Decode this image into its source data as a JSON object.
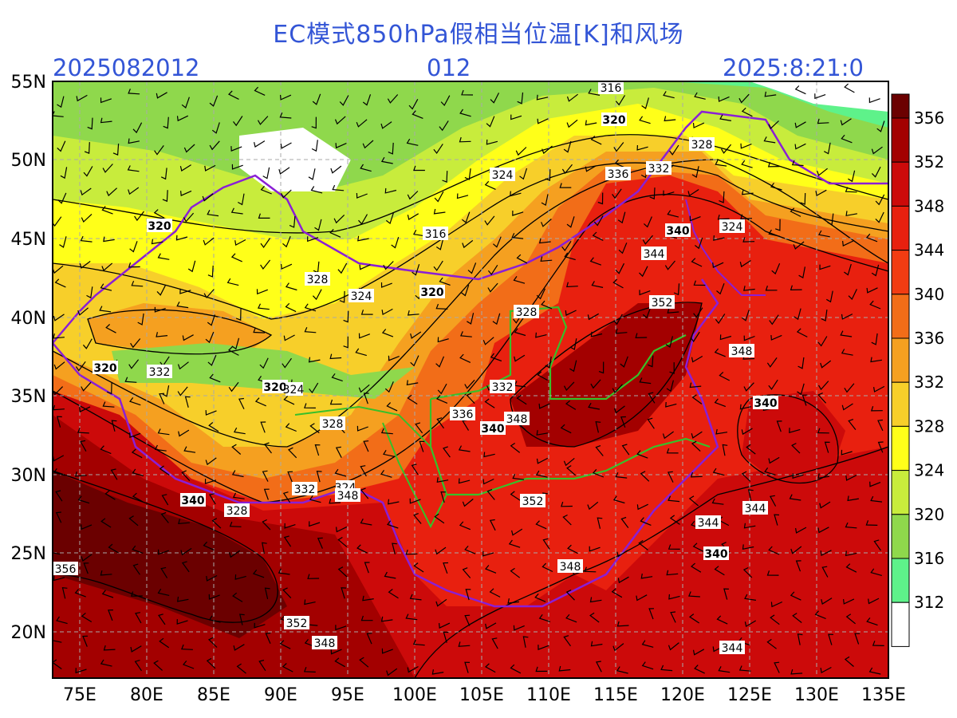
{
  "header": {
    "title": "EC模式850hPa假相当位温[K]和风场",
    "init_time": "2025082012",
    "forecast_hour": "012",
    "valid_time": "2025:8:21:0"
  },
  "axes": {
    "lat_labels": [
      "55N",
      "50N",
      "45N",
      "40N",
      "35N",
      "30N",
      "25N",
      "20N"
    ],
    "lon_labels": [
      "75E",
      "80E",
      "85E",
      "90E",
      "95E",
      "100E",
      "105E",
      "110E",
      "115E",
      "120E",
      "125E",
      "130E",
      "135E"
    ]
  },
  "colorbar": {
    "levels": [
      "356",
      "352",
      "348",
      "344",
      "340",
      "336",
      "332",
      "328",
      "324",
      "320",
      "316",
      "312"
    ],
    "colors": [
      "#6b0000",
      "#a30000",
      "#cc0a0a",
      "#e8200f",
      "#f23c12",
      "#f26d18",
      "#f5a020",
      "#f7cf2a",
      "#ffff19",
      "#c8ec3c",
      "#8fd84c",
      "#5ef28a",
      "#ffffff"
    ]
  },
  "contour_labels": [
    {
      "text": "316"
    },
    {
      "text": "320"
    },
    {
      "text": "328"
    },
    {
      "text": "324"
    },
    {
      "text": "336"
    },
    {
      "text": "332"
    },
    {
      "text": "320"
    },
    {
      "text": "316"
    },
    {
      "text": "340"
    },
    {
      "text": "324"
    },
    {
      "text": "344"
    },
    {
      "text": "328"
    },
    {
      "text": "324"
    },
    {
      "text": "320"
    },
    {
      "text": "328"
    },
    {
      "text": "352"
    },
    {
      "text": "348"
    },
    {
      "text": "320"
    },
    {
      "text": "332"
    },
    {
      "text": "320"
    },
    {
      "text": "324"
    },
    {
      "text": "332"
    },
    {
      "text": "328"
    },
    {
      "text": "336"
    },
    {
      "text": "348"
    },
    {
      "text": "340"
    },
    {
      "text": "340"
    },
    {
      "text": "332"
    },
    {
      "text": "324"
    },
    {
      "text": "348"
    },
    {
      "text": "340"
    },
    {
      "text": "328"
    },
    {
      "text": "352"
    },
    {
      "text": "344"
    },
    {
      "text": "344"
    },
    {
      "text": "340"
    },
    {
      "text": "356"
    },
    {
      "text": "348"
    },
    {
      "text": "352"
    },
    {
      "text": "348"
    },
    {
      "text": "344"
    }
  ]
}
